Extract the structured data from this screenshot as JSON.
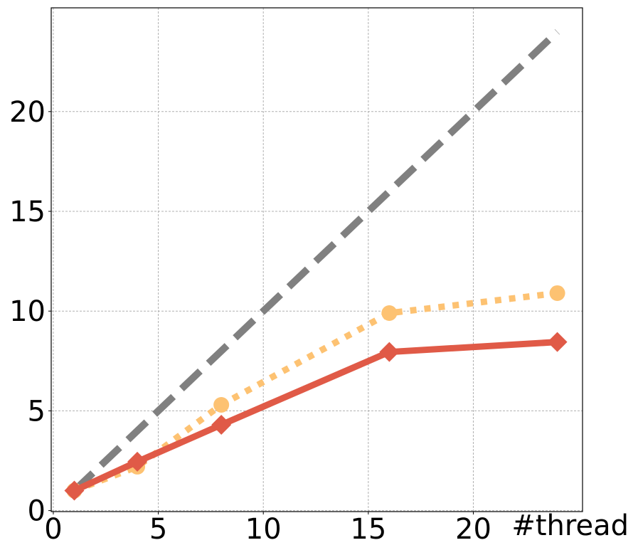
{
  "chart_data": {
    "type": "line",
    "title": "",
    "xlabel": "#thread",
    "ylabel": "",
    "xlim": [
      -0.1,
      25.2
    ],
    "ylim": [
      -0.05,
      25.2
    ],
    "xticks": [
      0,
      5,
      10,
      15,
      20
    ],
    "yticks": [
      0,
      5,
      10,
      15,
      20
    ],
    "grid": true,
    "series": [
      {
        "style": "dashed",
        "color": "#808080",
        "marker": "none",
        "x": [
          1,
          24
        ],
        "y": [
          1,
          24
        ]
      },
      {
        "style": "dotted",
        "color": "#FDC272",
        "marker": "circle",
        "x": [
          1,
          4,
          8,
          16,
          24
        ],
        "y": [
          1,
          2.2,
          5.3,
          9.9,
          10.9
        ]
      },
      {
        "style": "solid",
        "color": "#E05A47",
        "marker": "diamond",
        "x": [
          1,
          4,
          8,
          16,
          24
        ],
        "y": [
          1,
          2.45,
          4.3,
          7.95,
          8.45
        ]
      }
    ]
  }
}
